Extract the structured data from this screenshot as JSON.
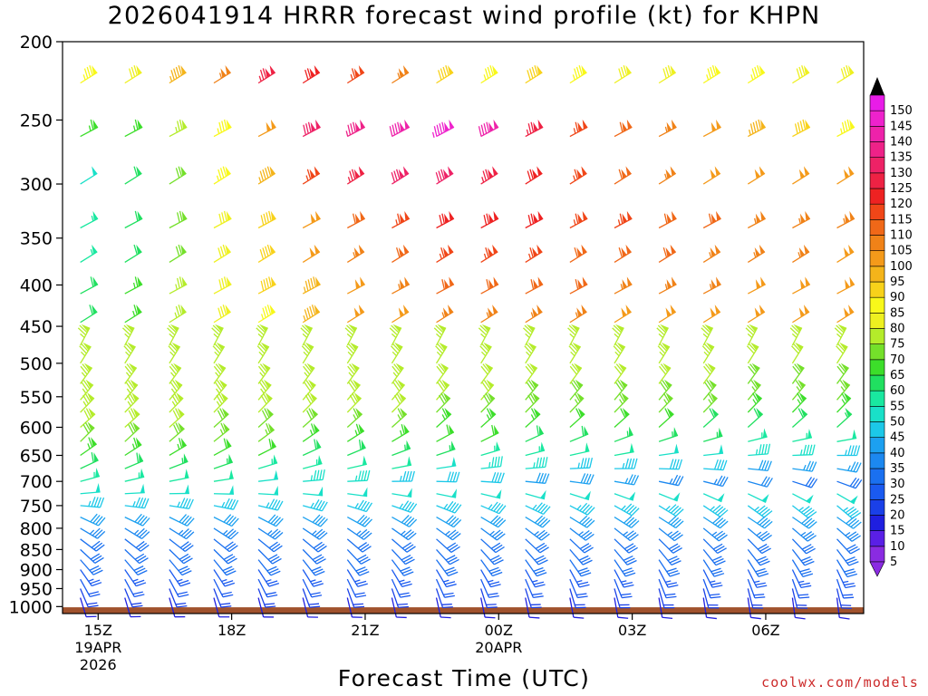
{
  "title": "2026041914 HRRR forecast wind profile (kt) for KHPN",
  "x_axis_title": "Forecast Time (UTC)",
  "credit": "coolwx.com/models",
  "chart_data": {
    "type": "wind-barb-time-height",
    "ylabel": "",
    "y_scale": "log",
    "y_reversed": true,
    "ylim": [
      1020,
      200
    ],
    "y_ticks": [
      200,
      250,
      300,
      350,
      400,
      450,
      500,
      550,
      600,
      650,
      700,
      750,
      800,
      850,
      900,
      950,
      1000
    ],
    "x_ticks": [
      {
        "hour": 15,
        "label": "15Z",
        "sub1": "19APR",
        "sub2": "2026"
      },
      {
        "hour": 18,
        "label": "18Z",
        "sub1": "",
        "sub2": ""
      },
      {
        "hour": 21,
        "label": "21Z",
        "sub1": "",
        "sub2": ""
      },
      {
        "hour": 24,
        "label": "00Z",
        "sub1": "20APR",
        "sub2": ""
      },
      {
        "hour": 27,
        "label": "03Z",
        "sub1": "",
        "sub2": ""
      },
      {
        "hour": 30,
        "label": "06Z",
        "sub1": "",
        "sub2": ""
      }
    ],
    "xlim": [
      14.2,
      32.2
    ],
    "times": [
      14.6,
      15.6,
      16.6,
      17.6,
      18.6,
      19.6,
      20.6,
      21.6,
      22.6,
      23.6,
      24.6,
      25.6,
      26.6,
      27.6,
      28.6,
      29.6,
      30.6,
      31.6
    ],
    "upper_levels": [
      225,
      262,
      300,
      340,
      375,
      410,
      445
    ],
    "low_levels": [
      475,
      500,
      530,
      555,
      575,
      600,
      625,
      650,
      675,
      700,
      725,
      750,
      775,
      800,
      825,
      850,
      875,
      900,
      925,
      950,
      975
    ],
    "upper_speeds_kt": [
      [
        85,
        80,
        95,
        105,
        125,
        120,
        115,
        105,
        90,
        85,
        90,
        85,
        80,
        80,
        85,
        85,
        80,
        80
      ],
      [
        65,
        65,
        75,
        85,
        100,
        130,
        135,
        140,
        145,
        140,
        125,
        115,
        110,
        105,
        100,
        95,
        90,
        85
      ],
      [
        50,
        60,
        70,
        85,
        95,
        115,
        125,
        130,
        130,
        125,
        120,
        115,
        110,
        105,
        100,
        100,
        100,
        100
      ],
      [
        55,
        60,
        70,
        80,
        90,
        100,
        110,
        115,
        120,
        120,
        120,
        115,
        115,
        110,
        110,
        105,
        105,
        105
      ],
      [
        55,
        60,
        70,
        80,
        90,
        100,
        105,
        110,
        115,
        115,
        115,
        110,
        110,
        110,
        105,
        105,
        105,
        100
      ],
      [
        60,
        65,
        75,
        80,
        90,
        95,
        100,
        105,
        110,
        110,
        110,
        110,
        105,
        105,
        105,
        100,
        100,
        100
      ],
      [
        60,
        65,
        75,
        80,
        85,
        95,
        100,
        100,
        105,
        105,
        105,
        105,
        100,
        100,
        100,
        100,
        100,
        100
      ]
    ],
    "low_profile_speeds_kt": [
      75,
      75,
      75,
      75,
      75,
      72,
      70,
      65,
      60,
      55,
      50,
      45,
      40,
      35,
      30,
      30,
      28,
      25,
      22,
      18,
      12
    ],
    "legend": {
      "unit": "kt",
      "levels": [
        5,
        10,
        15,
        20,
        25,
        30,
        35,
        40,
        45,
        50,
        55,
        60,
        65,
        70,
        75,
        80,
        85,
        90,
        95,
        100,
        105,
        110,
        115,
        120,
        125,
        130,
        135,
        140,
        145,
        150
      ],
      "colors": [
        "#8a2be2",
        "#5a1fe6",
        "#1f1fe0",
        "#1a40e8",
        "#1a5af0",
        "#1a70f0",
        "#1c88f0",
        "#1ca0f0",
        "#1cc8e8",
        "#19e0c8",
        "#19e8a0",
        "#20e060",
        "#3cde2a",
        "#74e02a",
        "#b4ec2a",
        "#eef020",
        "#f8f81a",
        "#f8d21a",
        "#f4b41a",
        "#f49a1a",
        "#f08218",
        "#f06818",
        "#f04618",
        "#ee2222",
        "#ee2244",
        "#ee2266",
        "#ee2288",
        "#ee22aa",
        "#ee22cc",
        "#e81ce8"
      ]
    },
    "ground_color": "#a0522d"
  }
}
